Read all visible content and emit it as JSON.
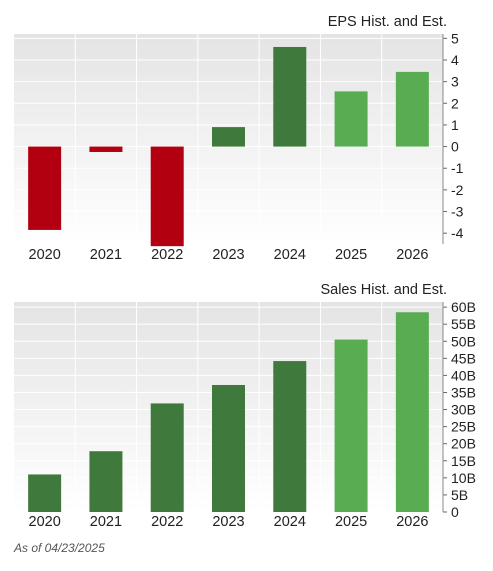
{
  "footnote": "As of 04/23/2025",
  "colors": {
    "negative": "#b30010",
    "historical": "#3f7a3c",
    "estimate": "#5aac52",
    "plot_bg_top": "#e6e6e6",
    "plot_bg_bottom": "#ffffff",
    "grid": "#ffffff"
  },
  "chart_data": [
    {
      "type": "bar",
      "title": "EPS Hist. and Est.",
      "categories": [
        "2020",
        "2021",
        "2022",
        "2023",
        "2024",
        "2025",
        "2026"
      ],
      "values": [
        -3.85,
        -0.25,
        -4.6,
        0.9,
        4.6,
        2.55,
        3.45
      ],
      "estimate_flags": [
        false,
        false,
        false,
        false,
        false,
        true,
        true
      ],
      "ylim": [
        -4.5,
        5.2
      ],
      "yticks": [
        -4,
        -3,
        -2,
        -1,
        0,
        1,
        2,
        3,
        4,
        5
      ],
      "ytick_labels": [
        "-4",
        "-3",
        "-2",
        "-1",
        "0",
        "1",
        "2",
        "3",
        "4",
        "5"
      ],
      "grid": true,
      "axis_position": "right"
    },
    {
      "type": "bar",
      "title": "Sales Hist. and Est.",
      "categories": [
        "2020",
        "2021",
        "2022",
        "2023",
        "2024",
        "2025",
        "2026"
      ],
      "values": [
        11,
        17.8,
        31.8,
        37.2,
        44.2,
        50.5,
        58.5
      ],
      "estimate_flags": [
        false,
        false,
        false,
        false,
        false,
        true,
        true
      ],
      "ylim": [
        0,
        61.5
      ],
      "yticks": [
        0,
        5,
        10,
        15,
        20,
        25,
        30,
        35,
        40,
        45,
        50,
        55,
        60
      ],
      "ytick_labels": [
        "0",
        "5B",
        "10B",
        "15B",
        "20B",
        "25B",
        "30B",
        "35B",
        "40B",
        "45B",
        "50B",
        "55B",
        "60B"
      ],
      "grid": true,
      "axis_position": "right"
    }
  ]
}
